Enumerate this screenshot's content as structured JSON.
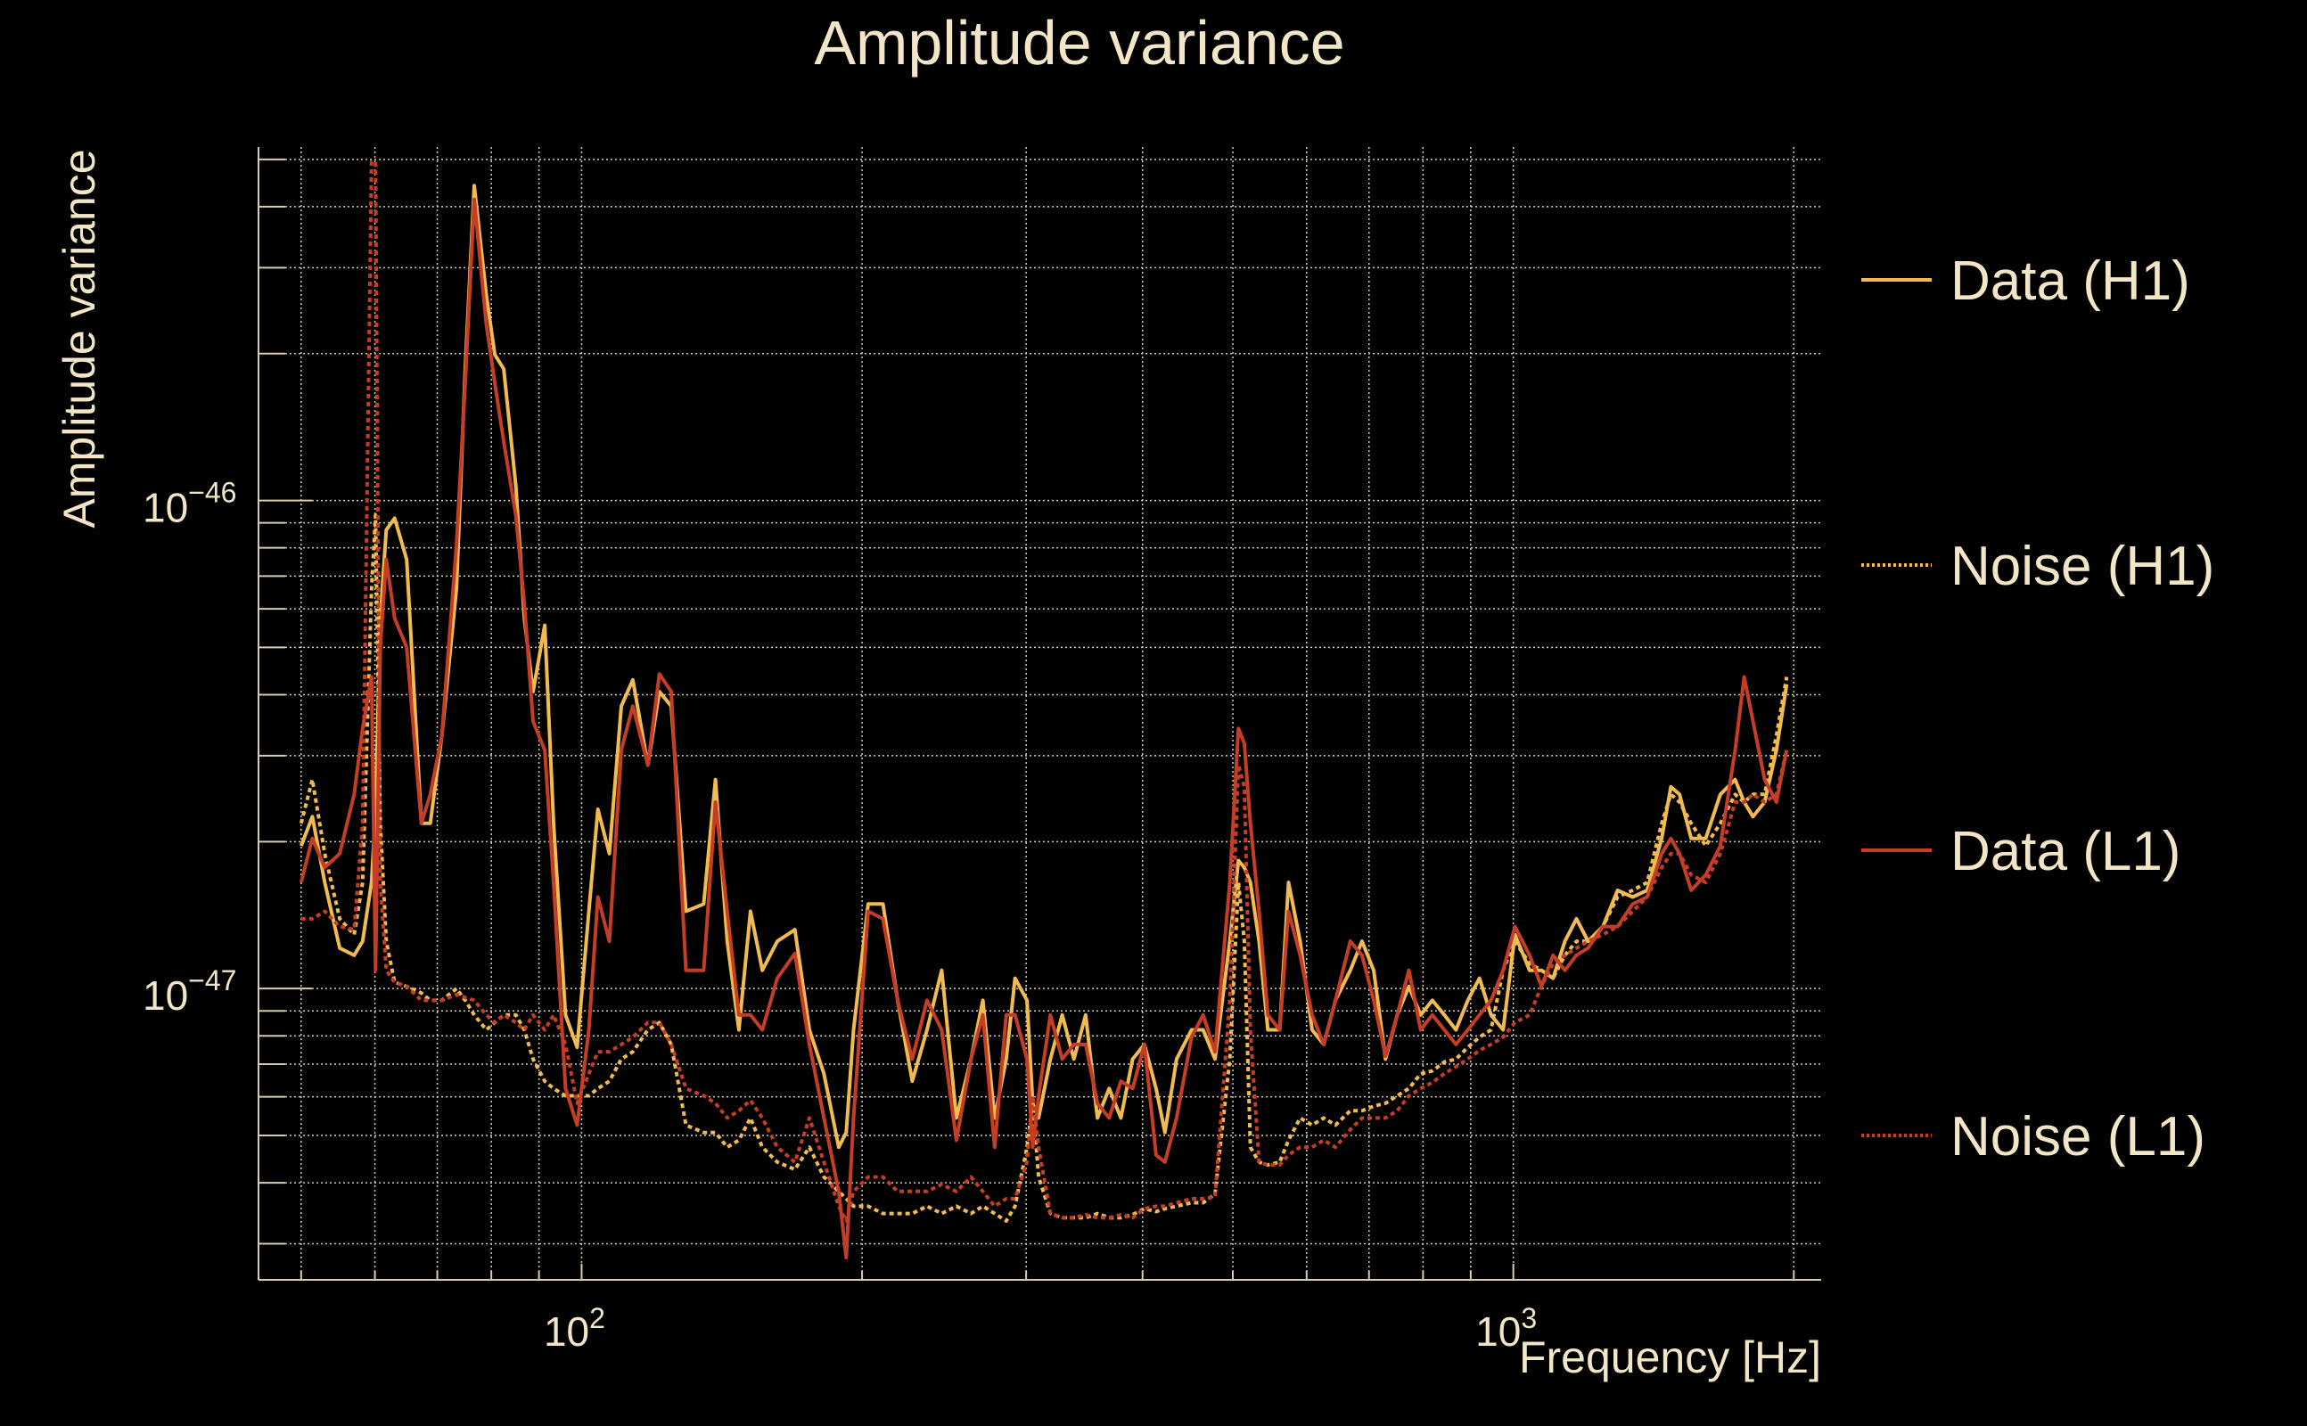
{
  "chart_data": {
    "type": "line",
    "title": "Amplitude variance",
    "xlabel": "Frequency [Hz]",
    "ylabel": "Amplitude variance",
    "xscale": "log",
    "yscale": "log",
    "xlim": [
      45,
      2140
    ],
    "ylim": [
      2.53e-48,
      5.3e-46
    ],
    "grid": true,
    "legend_position": "right-outside",
    "x_tick_labels": [
      {
        "base": "10",
        "exp": "2",
        "value": 100
      },
      {
        "base": "10",
        "exp": "3",
        "value": 1000
      }
    ],
    "y_tick_labels": [
      {
        "base": "10",
        "exp": "−46",
        "value": 1e-46
      },
      {
        "base": "10",
        "exp": "−47",
        "value": 1e-47
      }
    ],
    "y_unit_multiplier": 1e-47,
    "x": [
      50.0,
      51.4,
      53.0,
      55.0,
      57.0,
      58.2,
      59.5,
      60.1,
      60.8,
      61.7,
      63.0,
      64.9,
      67.3,
      68.8,
      70.8,
      73.4,
      75.0,
      76.7,
      79.0,
      80.7,
      82.5,
      85.0,
      86.8,
      88.7,
      91.3,
      93.3,
      96.1,
      98.9,
      101.8,
      104.1,
      107.1,
      110.3,
      113.5,
      117.8,
      121.2,
      124.8,
      129.4,
      135.2,
      139.2,
      143.3,
      147.5,
      151.8,
      156.3,
      162.2,
      169.4,
      175.6,
      182.0,
      188.8,
      192.3,
      195.8,
      203.0,
      210.6,
      218.4,
      226.4,
      234.8,
      243.5,
      252.5,
      261.8,
      269.6,
      277.5,
      285.6,
      291.9,
      300.6,
      304.9,
      309.4,
      318.5,
      328.0,
      337.6,
      347.5,
      357.8,
      368.3,
      379.1,
      390.3,
      401.8,
      413.6,
      422.7,
      435.1,
      451.5,
      464.6,
      478.4,
      496.2,
      507.0,
      514.4,
      522.1,
      533.4,
      545.2,
      561.4,
      573.8,
      590.4,
      608.1,
      625.9,
      644.3,
      668.4,
      688.0,
      708.2,
      729.2,
      750.6,
      772.6,
      795.4,
      818.6,
      843.3,
      867.9,
      893.6,
      919.8,
      946.3,
      975.0,
      1004,
      1041,
      1072,
      1103,
      1136,
      1169,
      1203,
      1248,
      1294,
      1343,
      1392,
      1443,
      1476,
      1508,
      1552,
      1609,
      1668,
      1730,
      1769,
      1808,
      1861,
      1916,
      1965
    ],
    "series": [
      {
        "name": "Data (H1)",
        "color": "#f0bb4f",
        "style": "solid",
        "values": [
          1.96,
          2.25,
          1.65,
          1.21,
          1.17,
          1.25,
          1.65,
          2.33,
          5.74,
          8.7,
          9.2,
          7.57,
          2.18,
          2.18,
          3.3,
          6.6,
          18.6,
          44.2,
          26.4,
          19.9,
          18.6,
          10.7,
          5.74,
          4.06,
          5.55,
          2.18,
          0.883,
          0.758,
          1.44,
          2.33,
          1.89,
          3.79,
          4.29,
          2.87,
          4.06,
          3.79,
          1.44,
          1.49,
          2.68,
          1.25,
          0.823,
          1.44,
          1.09,
          1.25,
          1.32,
          0.823,
          0.669,
          0.473,
          0.507,
          0.823,
          1.49,
          1.49,
          0.946,
          0.646,
          0.823,
          1.09,
          0.543,
          0.717,
          0.946,
          0.543,
          0.717,
          1.05,
          0.946,
          0.582,
          0.543,
          0.717,
          0.883,
          0.717,
          0.883,
          0.543,
          0.624,
          0.543,
          0.717,
          0.768,
          0.624,
          0.507,
          0.717,
          0.823,
          0.823,
          0.717,
          1.25,
          1.83,
          1.77,
          1.65,
          1.25,
          0.823,
          0.823,
          1.65,
          1.25,
          0.823,
          0.768,
          0.946,
          1.09,
          1.25,
          1.09,
          0.717,
          0.883,
          1.01,
          0.883,
          0.946,
          0.883,
          0.823,
          0.946,
          1.05,
          0.883,
          0.823,
          1.29,
          1.09,
          1.09,
          1.05,
          1.25,
          1.39,
          1.25,
          1.34,
          1.59,
          1.54,
          1.59,
          2.03,
          2.59,
          2.5,
          2.03,
          2.03,
          2.5,
          2.68,
          2.41,
          2.25,
          2.41,
          3.08,
          4.2
        ]
      },
      {
        "name": "Noise (H1)",
        "color": "#f0bb4f",
        "style": "dotted",
        "values": [
          2.18,
          2.68,
          1.89,
          1.39,
          1.29,
          1.65,
          6.6,
          9.33,
          2.18,
          1.25,
          1.03,
          1.01,
          0.979,
          0.946,
          0.946,
          1.0,
          0.946,
          0.883,
          0.823,
          0.852,
          0.883,
          0.883,
          0.823,
          0.717,
          0.646,
          0.624,
          0.603,
          0.603,
          0.603,
          0.624,
          0.646,
          0.717,
          0.742,
          0.823,
          0.852,
          0.768,
          0.525,
          0.507,
          0.507,
          0.473,
          0.489,
          0.543,
          0.473,
          0.441,
          0.426,
          0.473,
          0.411,
          0.384,
          0.371,
          0.358,
          0.358,
          0.346,
          0.346,
          0.346,
          0.358,
          0.346,
          0.358,
          0.346,
          0.358,
          0.346,
          0.334,
          0.358,
          0.473,
          0.582,
          0.411,
          0.346,
          0.339,
          0.339,
          0.339,
          0.346,
          0.339,
          0.339,
          0.344,
          0.354,
          0.349,
          0.354,
          0.358,
          0.364,
          0.364,
          0.379,
          0.717,
          1.65,
          1.25,
          0.473,
          0.441,
          0.435,
          0.441,
          0.489,
          0.543,
          0.525,
          0.543,
          0.525,
          0.562,
          0.562,
          0.574,
          0.582,
          0.603,
          0.624,
          0.669,
          0.678,
          0.707,
          0.717,
          0.758,
          0.795,
          0.823,
          1.09,
          1.25,
          1.125,
          1.09,
          1.05,
          1.17,
          1.25,
          1.25,
          1.34,
          1.54,
          1.59,
          1.65,
          2.18,
          2.5,
          2.41,
          2.18,
          1.96,
          2.18,
          2.5,
          2.41,
          2.5,
          2.5,
          3.3,
          4.35
        ]
      },
      {
        "name": "Data (L1)",
        "color": "#c43d26",
        "style": "solid",
        "values": [
          1.65,
          2.03,
          1.77,
          1.89,
          2.5,
          3.41,
          4.35,
          1.09,
          5.0,
          7.57,
          5.74,
          5.0,
          2.18,
          2.5,
          3.3,
          8.12,
          17.4,
          41.4,
          23.0,
          17.4,
          13.2,
          9.33,
          6.16,
          3.53,
          3.08,
          1.65,
          0.624,
          0.525,
          0.823,
          1.54,
          1.25,
          3.08,
          3.79,
          2.87,
          4.41,
          4.06,
          1.09,
          1.09,
          2.41,
          1.44,
          0.883,
          0.883,
          0.823,
          1.05,
          1.18,
          0.768,
          0.543,
          0.384,
          0.281,
          0.543,
          1.44,
          1.39,
          0.946,
          0.717,
          0.946,
          0.823,
          0.489,
          0.717,
          0.883,
          0.473,
          0.883,
          0.883,
          0.717,
          0.473,
          0.603,
          0.883,
          0.717,
          0.768,
          0.768,
          0.582,
          0.543,
          0.646,
          0.624,
          0.768,
          0.456,
          0.441,
          0.543,
          0.795,
          0.883,
          0.742,
          1.65,
          3.41,
          3.18,
          2.18,
          1.44,
          0.883,
          0.823,
          1.44,
          1.17,
          0.883,
          0.768,
          0.946,
          1.25,
          1.17,
          0.946,
          0.727,
          0.883,
          1.09,
          0.823,
          0.883,
          0.823,
          0.768,
          0.823,
          0.883,
          0.946,
          1.09,
          1.34,
          1.17,
          1.01,
          1.17,
          1.09,
          1.17,
          1.21,
          1.34,
          1.34,
          1.49,
          1.54,
          1.89,
          2.03,
          1.89,
          1.59,
          1.71,
          1.96,
          3.08,
          4.35,
          3.53,
          2.68,
          2.41,
          3.08
        ]
      },
      {
        "name": "Noise (L1)",
        "color": "#c43d26",
        "style": "dotted",
        "values": [
          1.39,
          1.39,
          1.44,
          1.34,
          1.32,
          2.18,
          49.4,
          49.4,
          1.65,
          1.09,
          1.03,
          1.01,
          0.946,
          0.946,
          0.946,
          0.972,
          0.959,
          0.946,
          0.883,
          0.852,
          0.883,
          0.852,
          0.823,
          0.883,
          0.823,
          0.883,
          0.768,
          0.582,
          0.669,
          0.742,
          0.742,
          0.768,
          0.795,
          0.852,
          0.852,
          0.768,
          0.624,
          0.603,
          0.582,
          0.543,
          0.562,
          0.59,
          0.543,
          0.473,
          0.441,
          0.543,
          0.441,
          0.358,
          0.334,
          0.384,
          0.411,
          0.411,
          0.384,
          0.384,
          0.384,
          0.397,
          0.384,
          0.411,
          0.384,
          0.358,
          0.371,
          0.371,
          0.441,
          0.603,
          0.473,
          0.346,
          0.339,
          0.339,
          0.344,
          0.339,
          0.339,
          0.344,
          0.339,
          0.354,
          0.358,
          0.358,
          0.364,
          0.371,
          0.371,
          0.374,
          0.946,
          2.87,
          2.59,
          0.823,
          0.441,
          0.435,
          0.435,
          0.456,
          0.473,
          0.473,
          0.489,
          0.473,
          0.514,
          0.543,
          0.543,
          0.543,
          0.562,
          0.603,
          0.624,
          0.642,
          0.669,
          0.692,
          0.717,
          0.747,
          0.768,
          0.795,
          0.852,
          0.883,
          1.01,
          1.125,
          1.17,
          1.21,
          1.25,
          1.29,
          1.34,
          1.44,
          1.54,
          1.77,
          1.89,
          1.89,
          1.71,
          1.65,
          1.89,
          2.41,
          2.41,
          2.5,
          2.41,
          2.5,
          3.08
        ]
      }
    ]
  }
}
